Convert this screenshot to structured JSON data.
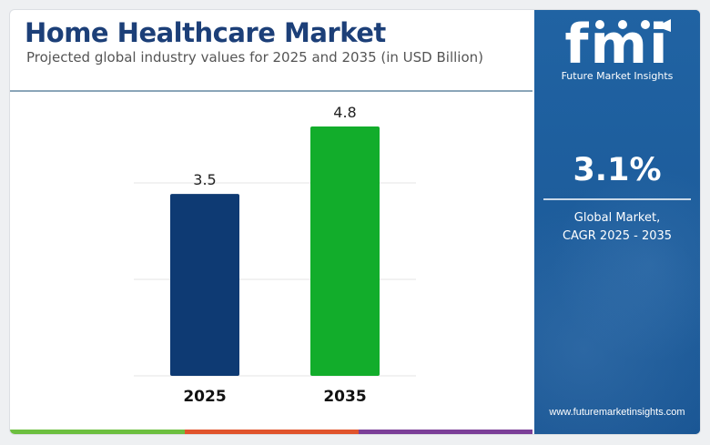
{
  "header": {
    "title": "Home Healthcare Market",
    "subtitle": "Projected global industry values for 2025 and 2035 (in USD Billion)"
  },
  "chart_data": {
    "type": "bar",
    "categories": [
      "2025",
      "2035"
    ],
    "values": [
      3.5,
      4.8
    ],
    "data_labels": [
      "3.5",
      "4.8"
    ],
    "bar_colors": [
      "#0e3a73",
      "#12ad2b"
    ],
    "title": "Home Healthcare Market",
    "subtitle": "Projected global industry values for 2025 and 2035 (in USD Billion)",
    "ylim": [
      0,
      5.5
    ],
    "grid": true,
    "legend": "none"
  },
  "sidebar": {
    "logo_text": "fmi",
    "logo_caption": "Future Market Insights",
    "cagr_value": "3.1%",
    "cagr_label_line1": "Global Market,",
    "cagr_label_line2": "CAGR 2025 - 2035",
    "website": "www.futuremarketinsights.com"
  },
  "colors": {
    "title": "#1c3f78",
    "panel": "#1f5f9f",
    "strip": [
      "#6cbf3f",
      "#e0542c",
      "#7b3f98"
    ]
  }
}
